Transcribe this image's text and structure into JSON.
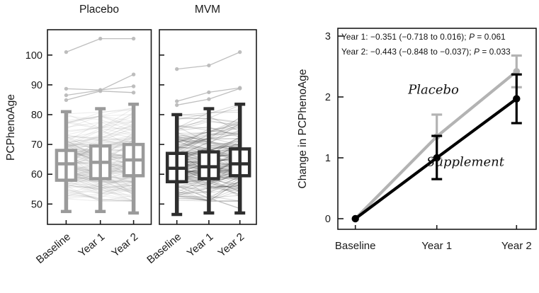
{
  "figure_type": "scientific-figure",
  "ui": {
    "annotations": [
      {
        "pre": "Year 1: −0.351 (−0.718 to 0.016); ",
        "p": "P",
        "post": " = 0.061"
      },
      {
        "pre": "Year 2: −0.443 (−0.848 to −0.037); ",
        "p": "P",
        "post": " = 0.033"
      }
    ]
  },
  "chart_data": [
    {
      "type": "line",
      "subtype": "spaghetti-trajectories-with-boxplots",
      "ylabel": "PCPhenoAge",
      "yticks": [
        50,
        60,
        70,
        80,
        90,
        100
      ],
      "ylim": [
        43,
        109
      ],
      "categories": [
        "Baseline",
        "Year 1",
        "Year 2"
      ],
      "grid": false,
      "panels": [
        {
          "title": "Placebo",
          "line_color": "#8f8f8f",
          "box_color": "#9a9a9a",
          "trace_opacity": 0.16,
          "boxplots": [
            {
              "category": "Baseline",
              "whisker_low": 47.5,
              "q1": 58.0,
              "median": 63.5,
              "q3": 68.0,
              "whisker_high": 81.0
            },
            {
              "category": "Year 1",
              "whisker_low": 47.5,
              "q1": 58.5,
              "median": 64.0,
              "q3": 69.5,
              "whisker_high": 82.0
            },
            {
              "category": "Year 2",
              "whisker_low": 47.0,
              "q1": 59.5,
              "median": 64.8,
              "q3": 70.0,
              "whisker_high": 83.5
            }
          ],
          "outlier_traces": [
            [
              101.0,
              105.5,
              105.5
            ],
            [
              88.7,
              88.3,
              89.5
            ],
            [
              86.5,
              88.2,
              93.5
            ],
            [
              84.9,
              87.9,
              87.4
            ]
          ],
          "spaghetti": {
            "n": 170,
            "mean": 64.5,
            "sd": 6.8,
            "step_sd": 3.2,
            "drift": 0.6,
            "range": [
              51,
              83.5
            ]
          }
        },
        {
          "title": "MVM",
          "line_color": "#2b2b2b",
          "box_color": "#2e2e2e",
          "trace_opacity": 0.17,
          "boxplots": [
            {
              "category": "Baseline",
              "whisker_low": 46.5,
              "q1": 57.5,
              "median": 62.0,
              "q3": 67.0,
              "whisker_high": 80.0
            },
            {
              "category": "Year 1",
              "whisker_low": 47.0,
              "q1": 58.5,
              "median": 62.5,
              "q3": 67.5,
              "whisker_high": 82.0
            },
            {
              "category": "Year 2",
              "whisker_low": 47.0,
              "q1": 59.5,
              "median": 63.5,
              "q3": 68.5,
              "whisker_high": 83.5
            }
          ],
          "outlier_traces": [
            [
              95.3,
              96.5,
              101.0
            ],
            [
              84.5,
              87.5,
              89.0
            ],
            [
              83.2,
              85.2,
              88.8
            ],
            [
              56.0,
              52.0,
              48.5
            ]
          ],
          "spaghetti": {
            "n": 170,
            "mean": 64.0,
            "sd": 6.8,
            "step_sd": 3.2,
            "drift": 0.6,
            "range": [
              51,
              83.5
            ]
          }
        }
      ],
      "outlier_color": "#b8b8b8"
    },
    {
      "type": "line",
      "ylabel": "Change in PCPhenoAge",
      "yticks": [
        0,
        1,
        2,
        3
      ],
      "ylim": [
        -0.2,
        3.2
      ],
      "categories": [
        "Baseline",
        "Year 1",
        "Year 2"
      ],
      "grid": false,
      "legend_position": "inline-script-labels",
      "series": [
        {
          "name": "Placebo",
          "color": "#b3b3b3",
          "values": [
            0,
            1.35,
            2.42
          ],
          "ci_low": [
            null,
            0.99,
            2.16
          ],
          "ci_high": [
            null,
            1.71,
            2.68
          ]
        },
        {
          "name": "Supplement",
          "color": "#000000",
          "values": [
            0,
            1.0,
            1.97
          ],
          "ci_low": [
            null,
            0.65,
            1.57
          ],
          "ci_high": [
            null,
            1.36,
            2.37
          ]
        }
      ],
      "annotations": [
        "Year 1: −0.351 (−0.718 to 0.016); P = 0.061",
        "Year 2: −0.443 (−0.848 to −0.037); P = 0.033"
      ]
    }
  ]
}
